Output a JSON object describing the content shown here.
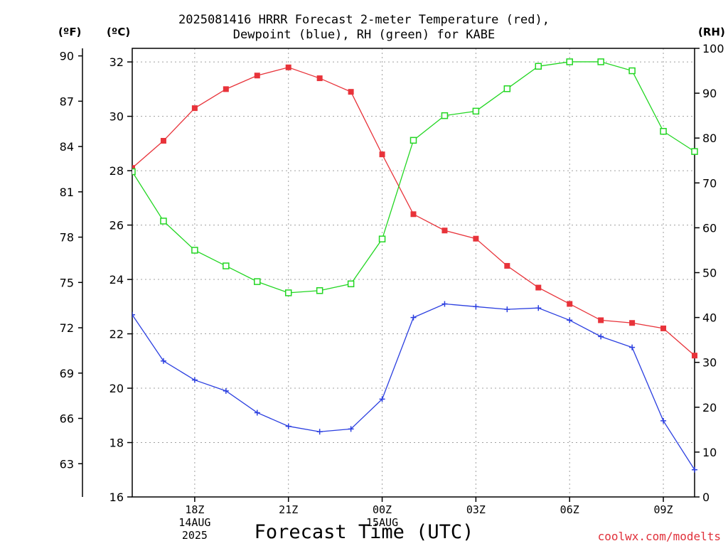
{
  "title": {
    "line1": "2025081416 HRRR Forecast 2-meter Temperature (red),",
    "line2": "Dewpoint (blue), RH (green) for KABE"
  },
  "units": {
    "f": "(ºF)",
    "c": "(ºC)",
    "rh": "(RH)"
  },
  "xaxis_title": "Forecast Time (UTC)",
  "credit": "coolwx.com/modelts",
  "colors": {
    "temperature": "#e8333a",
    "dewpoint": "#2b3fe0",
    "rh": "#22d622",
    "grid": "#a0a0a0",
    "axis": "#000000"
  },
  "chart_data": {
    "type": "line",
    "x": [
      "16Z",
      "17Z",
      "18Z",
      "19Z",
      "20Z",
      "21Z",
      "22Z",
      "23Z",
      "00Z",
      "01Z",
      "02Z",
      "03Z",
      "04Z",
      "05Z",
      "06Z",
      "07Z",
      "08Z",
      "09Z",
      "10Z"
    ],
    "xlim": [
      16,
      34
    ],
    "x_ticks": [
      {
        "x": 18,
        "label": "18Z",
        "sub": [
          "14AUG",
          "2025"
        ]
      },
      {
        "x": 21,
        "label": "21Z",
        "sub": []
      },
      {
        "x": 24,
        "label": "00Z",
        "sub": [
          "15AUG"
        ]
      },
      {
        "x": 27,
        "label": "03Z",
        "sub": []
      },
      {
        "x": 30,
        "label": "06Z",
        "sub": []
      },
      {
        "x": 33,
        "label": "09Z",
        "sub": []
      }
    ],
    "ylim_c": [
      16,
      32.5
    ],
    "yticks_c": [
      16,
      18,
      20,
      22,
      24,
      26,
      28,
      30,
      32
    ],
    "yticks_f": [
      63,
      66,
      69,
      72,
      75,
      78,
      81,
      84,
      87,
      90
    ],
    "ylim_rh": [
      0,
      100
    ],
    "yticks_rh": [
      0,
      10,
      20,
      30,
      40,
      50,
      60,
      70,
      80,
      90,
      100
    ],
    "grid": true,
    "series": [
      {
        "key": "temperature",
        "axis": "c",
        "marker": "filled-square",
        "values": [
          28.1,
          29.1,
          30.3,
          31.0,
          31.5,
          31.8,
          31.4,
          30.9,
          28.6,
          26.4,
          25.8,
          25.5,
          24.5,
          23.7,
          23.1,
          22.5,
          22.4,
          22.2,
          21.2
        ]
      },
      {
        "key": "dewpoint",
        "axis": "c",
        "marker": "plus",
        "values": [
          22.7,
          21.0,
          20.3,
          19.9,
          19.1,
          18.6,
          18.4,
          18.5,
          19.6,
          22.6,
          23.1,
          23.0,
          22.9,
          22.95,
          22.5,
          21.9,
          21.5,
          18.8,
          17.0
        ]
      },
      {
        "key": "rh",
        "axis": "rh",
        "marker": "open-square",
        "values": [
          72.5,
          61.5,
          55.0,
          51.5,
          48.0,
          45.5,
          46.0,
          47.5,
          57.5,
          79.5,
          85.0,
          86.0,
          91.0,
          96.0,
          97.0,
          97.0,
          95.0,
          81.5,
          77.0
        ]
      }
    ]
  }
}
